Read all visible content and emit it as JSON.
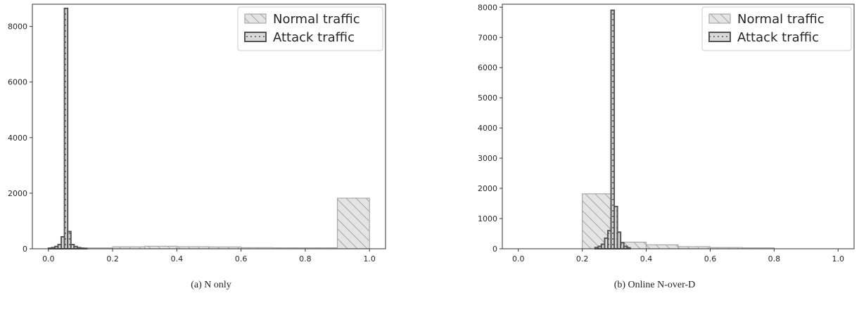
{
  "chart_data": [
    {
      "type": "bar",
      "caption": "(a) N only",
      "xlim": [
        -0.05,
        1.05
      ],
      "ylim": [
        0,
        8800
      ],
      "xticks": [
        0.0,
        0.2,
        0.4,
        0.6,
        0.8,
        1.0
      ],
      "xtick_labels": [
        "0.0",
        "0.2",
        "0.4",
        "0.6",
        "0.8",
        "1.0"
      ],
      "yticks": [
        0,
        2000,
        4000,
        6000,
        8000
      ],
      "ytick_labels": [
        "0",
        "2000",
        "4000",
        "6000",
        "8000"
      ],
      "legend": {
        "position": "top-right",
        "entries": [
          "Normal traffic",
          "Attack traffic"
        ]
      },
      "series": [
        {
          "name": "Normal traffic",
          "bins": [
            {
              "x0": 0.0,
              "x1": 0.1,
              "value": 30
            },
            {
              "x0": 0.1,
              "x1": 0.2,
              "value": 30
            },
            {
              "x0": 0.2,
              "x1": 0.3,
              "value": 70
            },
            {
              "x0": 0.3,
              "x1": 0.4,
              "value": 90
            },
            {
              "x0": 0.4,
              "x1": 0.5,
              "value": 75
            },
            {
              "x0": 0.5,
              "x1": 0.6,
              "value": 65
            },
            {
              "x0": 0.6,
              "x1": 0.7,
              "value": 40
            },
            {
              "x0": 0.7,
              "x1": 0.8,
              "value": 35
            },
            {
              "x0": 0.8,
              "x1": 0.9,
              "value": 35
            },
            {
              "x0": 0.9,
              "x1": 1.0,
              "value": 1820
            }
          ]
        },
        {
          "name": "Attack traffic",
          "bins": [
            {
              "x0": 0.0,
              "x1": 0.01,
              "value": 20
            },
            {
              "x0": 0.01,
              "x1": 0.02,
              "value": 40
            },
            {
              "x0": 0.02,
              "x1": 0.03,
              "value": 80
            },
            {
              "x0": 0.03,
              "x1": 0.04,
              "value": 150
            },
            {
              "x0": 0.04,
              "x1": 0.05,
              "value": 430
            },
            {
              "x0": 0.05,
              "x1": 0.06,
              "value": 8650
            },
            {
              "x0": 0.06,
              "x1": 0.07,
              "value": 620
            },
            {
              "x0": 0.07,
              "x1": 0.08,
              "value": 150
            },
            {
              "x0": 0.08,
              "x1": 0.09,
              "value": 80
            },
            {
              "x0": 0.09,
              "x1": 0.1,
              "value": 40
            },
            {
              "x0": 0.1,
              "x1": 0.11,
              "value": 20
            },
            {
              "x0": 0.11,
              "x1": 0.12,
              "value": 10
            }
          ]
        }
      ]
    },
    {
      "type": "bar",
      "caption": "(b) Online N-over-D",
      "xlim": [
        -0.05,
        1.05
      ],
      "ylim": [
        0,
        8100
      ],
      "xticks": [
        0.0,
        0.2,
        0.4,
        0.6,
        0.8,
        1.0
      ],
      "xtick_labels": [
        "0.0",
        "0.2",
        "0.4",
        "0.6",
        "0.8",
        "1.0"
      ],
      "yticks": [
        0,
        1000,
        2000,
        3000,
        4000,
        5000,
        6000,
        7000,
        8000
      ],
      "ytick_labels": [
        "0",
        "1000",
        "2000",
        "3000",
        "4000",
        "5000",
        "6000",
        "7000",
        "8000"
      ],
      "legend": {
        "position": "top-right",
        "entries": [
          "Normal traffic",
          "Attack traffic"
        ]
      },
      "series": [
        {
          "name": "Normal traffic",
          "bins": [
            {
              "x0": 0.0,
              "x1": 0.1,
              "value": 0
            },
            {
              "x0": 0.1,
              "x1": 0.2,
              "value": 0
            },
            {
              "x0": 0.2,
              "x1": 0.3,
              "value": 1820
            },
            {
              "x0": 0.3,
              "x1": 0.4,
              "value": 220
            },
            {
              "x0": 0.4,
              "x1": 0.5,
              "value": 130
            },
            {
              "x0": 0.5,
              "x1": 0.6,
              "value": 70
            },
            {
              "x0": 0.6,
              "x1": 0.7,
              "value": 40
            },
            {
              "x0": 0.7,
              "x1": 0.8,
              "value": 30
            },
            {
              "x0": 0.8,
              "x1": 0.9,
              "value": 0
            },
            {
              "x0": 0.9,
              "x1": 1.0,
              "value": 0
            }
          ]
        },
        {
          "name": "Attack traffic",
          "bins": [
            {
              "x0": 0.24,
              "x1": 0.25,
              "value": 40
            },
            {
              "x0": 0.25,
              "x1": 0.26,
              "value": 80
            },
            {
              "x0": 0.26,
              "x1": 0.27,
              "value": 150
            },
            {
              "x0": 0.27,
              "x1": 0.28,
              "value": 350
            },
            {
              "x0": 0.28,
              "x1": 0.29,
              "value": 600
            },
            {
              "x0": 0.29,
              "x1": 0.3,
              "value": 7900
            },
            {
              "x0": 0.3,
              "x1": 0.31,
              "value": 1400
            },
            {
              "x0": 0.31,
              "x1": 0.32,
              "value": 550
            },
            {
              "x0": 0.32,
              "x1": 0.33,
              "value": 200
            },
            {
              "x0": 0.33,
              "x1": 0.34,
              "value": 80
            },
            {
              "x0": 0.34,
              "x1": 0.35,
              "value": 30
            }
          ]
        }
      ]
    }
  ],
  "colors": {
    "normal_fill": "#e4e4e4",
    "normal_stroke": "#a8a8a8",
    "attack_fill": "#d9d9d9",
    "attack_stroke": "#555555",
    "axis": "#333333"
  }
}
